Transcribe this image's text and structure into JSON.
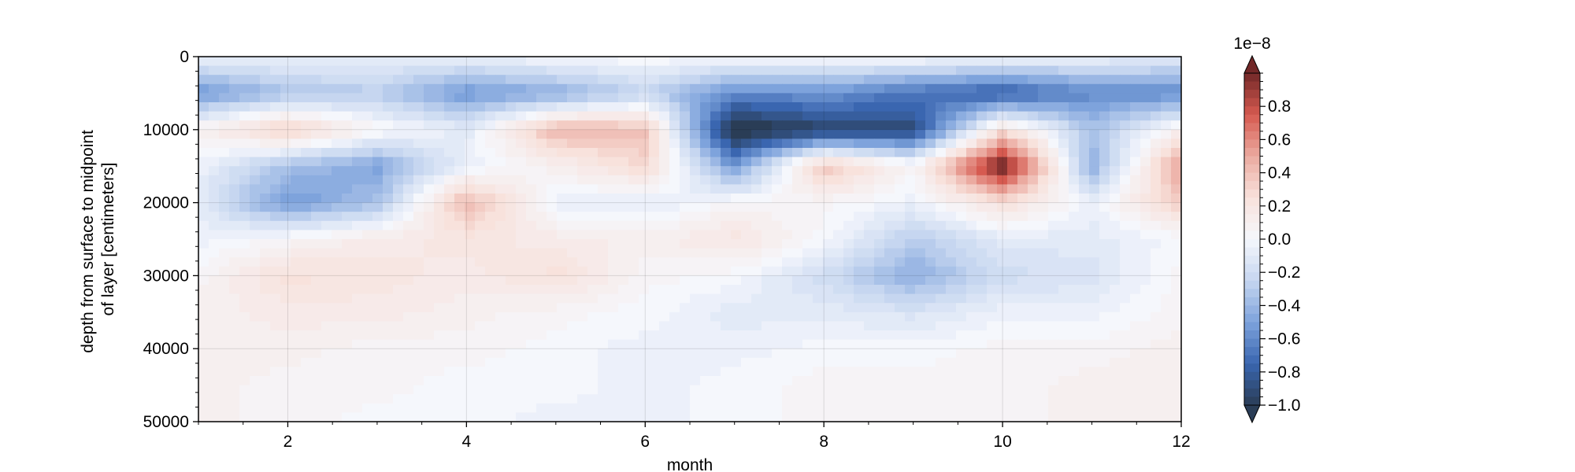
{
  "chart_data": {
    "type": "heatmap",
    "title": "",
    "xlabel": "month",
    "ylabel_lines": [
      "depth from surface to midpoint",
      "of layer [centimeters]"
    ],
    "xlim": [
      1,
      12
    ],
    "ylim": [
      50000,
      0
    ],
    "x_ticks": [
      2,
      4,
      6,
      8,
      10,
      12
    ],
    "y_ticks": [
      0,
      10000,
      20000,
      30000,
      40000,
      50000
    ],
    "grid": true,
    "colorbar": {
      "multiplier_label": "1e−8",
      "range": [
        -1.0,
        1.0
      ],
      "extend": "both",
      "ticks": [
        -1.0,
        -0.8,
        -0.6,
        -0.4,
        -0.2,
        0.0,
        0.2,
        0.4,
        0.6,
        0.8
      ],
      "tick_labels": [
        "−1.0",
        "−0.8",
        "−0.6",
        "−0.4",
        "−0.2",
        "0.0",
        "0.2",
        "0.4",
        "0.6",
        "0.8"
      ],
      "colormap": "balance",
      "color_stops": [
        "#2a3d56",
        "#3a66b0",
        "#7ea3dc",
        "#c6d6f0",
        "#f5f7fc",
        "#f8e2dc",
        "#ebaaa0",
        "#d65a50",
        "#722828"
      ]
    },
    "x": [
      1,
      2,
      3,
      4,
      5,
      6,
      7,
      8,
      9,
      10,
      11,
      12
    ],
    "y": [
      0,
      5000,
      10000,
      15000,
      20000,
      25000,
      30000,
      35000,
      40000,
      45000,
      50000
    ],
    "z_units_scale": 1e-08,
    "z": [
      [
        -0.05,
        -0.05,
        -0.05,
        -0.05,
        0.0,
        0.02,
        0.02,
        0.02,
        0.02,
        0.0,
        -0.05,
        -0.1
      ],
      [
        -0.55,
        -0.35,
        -0.3,
        -0.55,
        -0.45,
        -0.25,
        -0.6,
        -0.55,
        -0.7,
        -0.8,
        -0.6,
        -0.6
      ],
      [
        0.1,
        0.35,
        0.05,
        -0.1,
        0.45,
        0.4,
        -1.1,
        -0.95,
        -0.9,
        0.25,
        -0.35,
        0.1
      ],
      [
        -0.05,
        -0.35,
        -0.5,
        -0.05,
        0.1,
        0.3,
        -0.55,
        0.4,
        0.05,
        1.05,
        -0.45,
        0.55
      ],
      [
        -0.1,
        -0.55,
        -0.35,
        0.45,
        -0.05,
        -0.1,
        0.05,
        0.05,
        -0.05,
        0.25,
        -0.05,
        0.35
      ],
      [
        -0.05,
        0.05,
        0.15,
        0.2,
        0.15,
        0.1,
        0.2,
        0.0,
        -0.3,
        -0.1,
        -0.1,
        0.0
      ],
      [
        0.05,
        0.25,
        0.2,
        0.15,
        0.25,
        0.05,
        0.0,
        -0.2,
        -0.45,
        -0.2,
        -0.15,
        0.05
      ],
      [
        0.1,
        0.15,
        0.15,
        0.1,
        0.05,
        0.0,
        -0.1,
        -0.1,
        -0.15,
        -0.05,
        -0.05,
        0.05
      ],
      [
        0.1,
        0.1,
        0.05,
        0.05,
        0.0,
        -0.05,
        -0.05,
        0.0,
        0.0,
        0.05,
        0.05,
        0.1
      ],
      [
        0.1,
        0.05,
        0.05,
        0.0,
        0.0,
        -0.05,
        0.0,
        0.05,
        0.05,
        0.05,
        0.1,
        0.1
      ],
      [
        0.1,
        0.05,
        0.0,
        0.0,
        -0.05,
        -0.05,
        0.0,
        0.05,
        0.05,
        0.05,
        0.1,
        0.1
      ]
    ]
  }
}
